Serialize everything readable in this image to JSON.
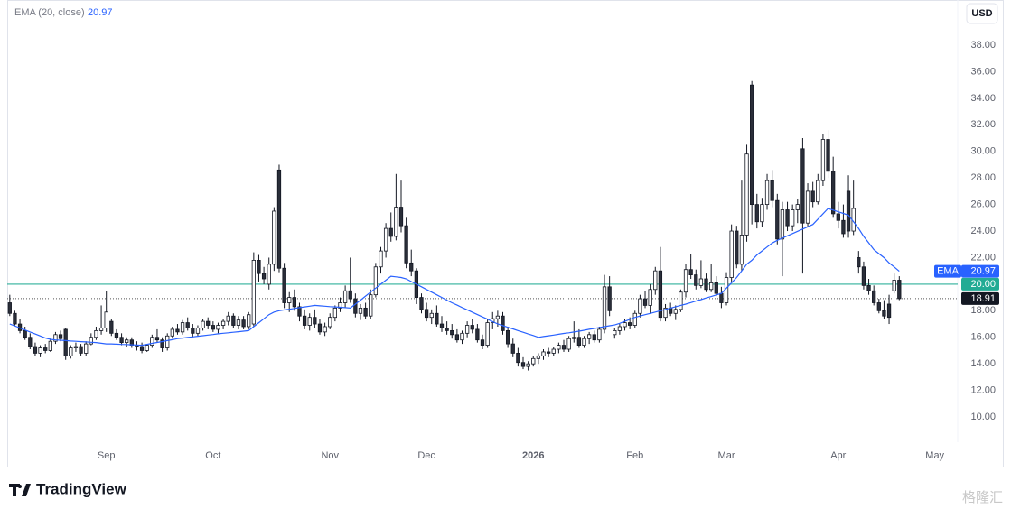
{
  "chart_data": {
    "type": "candlestick",
    "currency": "USD",
    "branding": "TradingView",
    "watermark": "格隆汇",
    "up_color": "#ffffff",
    "down_color": "#2a2e39",
    "candle_border": "#131722",
    "xlim": [
      -0.5,
      186.5
    ],
    "xticks": [
      {
        "value": 19,
        "label": "Sep"
      },
      {
        "value": 40,
        "label": "Oct"
      },
      {
        "value": 63,
        "label": "Nov"
      },
      {
        "value": 82,
        "label": "Dec"
      },
      {
        "value": 103,
        "label": "2026"
      },
      {
        "value": 123,
        "label": "Feb"
      },
      {
        "value": 141,
        "label": "Mar"
      },
      {
        "value": 163,
        "label": "Apr"
      },
      {
        "value": 182,
        "label": "May"
      }
    ],
    "ylim": [
      8.1,
      41.4
    ],
    "yticks": [
      {
        "value": 10,
        "label": "10.00"
      },
      {
        "value": 12,
        "label": "12.00"
      },
      {
        "value": 14,
        "label": "14.00"
      },
      {
        "value": 16,
        "label": "16.00"
      },
      {
        "value": 18,
        "label": "18.00"
      },
      {
        "value": 20,
        "label": "20.00"
      },
      {
        "value": 22,
        "label": "22.00"
      },
      {
        "value": 24,
        "label": "24.00"
      },
      {
        "value": 26,
        "label": "26.00"
      },
      {
        "value": 28,
        "label": "28.00"
      },
      {
        "value": 30,
        "label": "30.00"
      },
      {
        "value": 32,
        "label": "32.00"
      },
      {
        "value": 34,
        "label": "34.00"
      },
      {
        "value": 36,
        "label": "36.00"
      },
      {
        "value": 38,
        "label": "38.00"
      }
    ],
    "horizontal_line": {
      "value": 20,
      "label": "20.00",
      "color": "#22ab94"
    },
    "indicator": {
      "name": "EMA (20, close)",
      "tag": "EMA",
      "color": "#2962ff",
      "values": [
        17.0,
        16.85,
        16.7,
        16.55,
        16.4,
        16.25,
        16.1,
        15.95,
        15.85,
        15.8,
        15.78,
        15.75,
        15.72,
        15.7,
        15.67,
        15.65,
        15.62,
        15.6,
        15.55,
        15.5,
        15.5,
        15.48,
        15.46,
        15.45,
        15.43,
        15.42,
        15.4,
        15.47,
        15.54,
        15.61,
        15.68,
        15.75,
        15.82,
        15.9,
        15.94,
        15.99,
        16.03,
        16.08,
        16.12,
        16.17,
        16.21,
        16.26,
        16.3,
        16.34,
        16.38,
        16.42,
        16.46,
        16.5,
        16.8,
        17.1,
        17.4,
        17.7,
        17.9,
        18.0,
        18.06,
        18.11,
        18.17,
        18.23,
        18.29,
        18.34,
        18.4,
        18.37,
        18.34,
        18.31,
        18.29,
        18.26,
        18.23,
        18.2,
        18.5,
        18.8,
        19.1,
        19.4,
        19.7,
        20.0,
        20.3,
        20.6,
        20.55,
        20.5,
        20.4,
        20.2,
        20.0,
        19.8,
        19.6,
        19.4,
        19.2,
        19.0,
        18.8,
        18.6,
        18.42,
        18.24,
        18.07,
        17.89,
        17.71,
        17.53,
        17.36,
        17.18,
        17.0,
        16.88,
        16.75,
        16.63,
        16.5,
        16.38,
        16.25,
        16.13,
        16.0,
        16.06,
        16.11,
        16.17,
        16.23,
        16.29,
        16.34,
        16.4,
        16.46,
        16.53,
        16.6,
        16.66,
        16.73,
        16.8,
        16.87,
        16.93,
        17.05,
        17.2,
        17.35,
        17.5,
        17.6,
        17.7,
        17.8,
        17.9,
        18.0,
        18.1,
        18.2,
        18.3,
        18.4,
        18.5,
        18.61,
        18.73,
        18.84,
        18.96,
        19.07,
        19.19,
        19.3,
        19.7,
        20.1,
        20.5,
        21.0,
        21.5,
        21.8,
        22.2,
        22.5,
        22.8,
        23.1,
        23.3,
        23.47,
        23.64,
        23.81,
        23.98,
        24.15,
        24.32,
        24.5,
        24.9,
        25.3,
        25.7,
        25.58,
        25.45,
        25.33,
        25.2,
        24.7,
        24.2,
        23.6,
        23.1,
        22.6,
        22.3,
        22.0,
        21.6,
        21.3,
        20.97
      ]
    },
    "candles": [
      [
        18.6,
        19.2,
        17.6,
        17.8
      ],
      [
        17.8,
        18.0,
        16.9,
        17.0
      ],
      [
        17.0,
        17.4,
        16.3,
        16.5
      ],
      [
        16.5,
        16.8,
        15.8,
        16.0
      ],
      [
        16.0,
        16.3,
        15.1,
        15.3
      ],
      [
        15.3,
        15.6,
        14.6,
        14.8
      ],
      [
        14.8,
        15.4,
        14.5,
        15.2
      ],
      [
        15.2,
        15.5,
        14.8,
        15.0
      ],
      [
        15.0,
        15.9,
        14.9,
        15.7
      ],
      [
        15.7,
        16.4,
        15.5,
        16.2
      ],
      [
        16.2,
        16.5,
        15.7,
        15.9
      ],
      [
        16.6,
        16.7,
        14.3,
        14.6
      ],
      [
        14.6,
        15.4,
        14.4,
        15.2
      ],
      [
        15.2,
        15.6,
        14.9,
        15.3
      ],
      [
        15.3,
        15.5,
        14.6,
        14.8
      ],
      [
        14.8,
        15.7,
        14.6,
        15.5
      ],
      [
        15.5,
        16.3,
        15.4,
        16.0
      ],
      [
        16.0,
        16.8,
        15.8,
        16.5
      ],
      [
        16.5,
        18.4,
        16.2,
        16.7
      ],
      [
        16.7,
        19.5,
        16.4,
        17.9
      ],
      [
        17.2,
        17.4,
        16.1,
        16.3
      ],
      [
        16.3,
        16.6,
        15.8,
        16.0
      ],
      [
        16.0,
        16.3,
        15.4,
        15.6
      ],
      [
        15.6,
        16.0,
        15.3,
        15.8
      ],
      [
        15.8,
        16.0,
        15.2,
        15.4
      ],
      [
        15.4,
        15.7,
        15.0,
        15.3
      ],
      [
        15.3,
        15.6,
        14.8,
        15.0
      ],
      [
        15.0,
        15.5,
        14.9,
        15.4
      ],
      [
        15.4,
        16.2,
        15.2,
        16.0
      ],
      [
        16.0,
        16.6,
        15.6,
        15.8
      ],
      [
        15.8,
        16.0,
        14.9,
        15.2
      ],
      [
        15.2,
        16.3,
        15.0,
        16.1
      ],
      [
        16.1,
        16.8,
        15.9,
        16.6
      ],
      [
        16.6,
        17.0,
        16.2,
        16.4
      ],
      [
        16.4,
        17.3,
        16.2,
        17.1
      ],
      [
        17.1,
        17.5,
        16.5,
        16.7
      ],
      [
        16.7,
        17.0,
        16.0,
        16.3
      ],
      [
        16.3,
        16.9,
        16.1,
        16.7
      ],
      [
        16.7,
        17.4,
        16.5,
        17.2
      ],
      [
        17.2,
        17.5,
        16.6,
        16.9
      ],
      [
        16.9,
        17.2,
        16.4,
        16.6
      ],
      [
        16.6,
        17.1,
        16.3,
        16.9
      ],
      [
        16.9,
        17.4,
        16.6,
        17.2
      ],
      [
        17.2,
        17.9,
        16.9,
        17.6
      ],
      [
        17.6,
        17.8,
        16.7,
        16.9
      ],
      [
        16.9,
        17.6,
        16.6,
        17.3
      ],
      [
        17.3,
        17.6,
        16.6,
        16.8
      ],
      [
        16.8,
        17.9,
        16.6,
        17.7
      ],
      [
        17.0,
        22.4,
        16.8,
        21.8
      ],
      [
        21.8,
        22.2,
        20.2,
        20.8
      ],
      [
        20.8,
        21.3,
        20.0,
        20.4
      ],
      [
        20.0,
        22.0,
        19.6,
        21.5
      ],
      [
        21.5,
        25.8,
        21.0,
        25.5
      ],
      [
        28.6,
        29.0,
        20.9,
        21.2
      ],
      [
        21.2,
        21.6,
        18.2,
        18.6
      ],
      [
        18.6,
        19.4,
        17.9,
        19.0
      ],
      [
        19.0,
        19.6,
        18.0,
        18.3
      ],
      [
        18.3,
        18.6,
        17.2,
        17.6
      ],
      [
        17.6,
        18.1,
        16.6,
        16.9
      ],
      [
        16.9,
        17.8,
        16.5,
        17.5
      ],
      [
        17.5,
        18.1,
        16.7,
        17.0
      ],
      [
        17.0,
        17.4,
        16.2,
        16.4
      ],
      [
        16.4,
        17.1,
        16.1,
        16.8
      ],
      [
        16.8,
        17.8,
        16.6,
        17.5
      ],
      [
        17.5,
        18.4,
        17.2,
        18.2
      ],
      [
        18.2,
        19.0,
        17.9,
        18.6
      ],
      [
        18.6,
        19.9,
        18.2,
        19.5
      ],
      [
        19.5,
        22.0,
        18.6,
        18.9
      ],
      [
        18.9,
        19.3,
        17.5,
        17.8
      ],
      [
        17.8,
        18.5,
        17.3,
        18.2
      ],
      [
        18.2,
        18.6,
        17.4,
        17.6
      ],
      [
        17.6,
        19.6,
        17.4,
        19.2
      ],
      [
        19.2,
        21.6,
        19.0,
        21.3
      ],
      [
        21.3,
        22.8,
        20.8,
        22.5
      ],
      [
        22.5,
        24.6,
        22.0,
        24.2
      ],
      [
        24.2,
        25.4,
        23.2,
        23.6
      ],
      [
        23.6,
        28.3,
        23.3,
        25.8
      ],
      [
        25.8,
        27.8,
        23.9,
        24.4
      ],
      [
        24.4,
        25.0,
        21.2,
        21.6
      ],
      [
        21.6,
        22.6,
        20.6,
        21.0
      ],
      [
        21.0,
        21.2,
        18.5,
        19.0
      ],
      [
        19.0,
        19.3,
        17.8,
        18.1
      ],
      [
        18.1,
        18.6,
        17.2,
        17.5
      ],
      [
        17.5,
        18.1,
        17.0,
        17.8
      ],
      [
        17.8,
        18.4,
        16.8,
        17.0
      ],
      [
        17.0,
        17.6,
        16.4,
        16.7
      ],
      [
        16.7,
        17.2,
        16.2,
        16.5
      ],
      [
        16.5,
        17.0,
        15.9,
        16.2
      ],
      [
        16.2,
        16.6,
        15.6,
        15.8
      ],
      [
        15.8,
        16.5,
        15.5,
        16.3
      ],
      [
        16.3,
        17.2,
        16.0,
        16.9
      ],
      [
        16.9,
        17.4,
        16.3,
        16.6
      ],
      [
        16.6,
        17.0,
        15.6,
        15.8
      ],
      [
        15.8,
        16.2,
        15.1,
        15.4
      ],
      [
        15.4,
        17.4,
        15.2,
        17.1
      ],
      [
        17.1,
        17.9,
        16.6,
        17.4
      ],
      [
        17.4,
        18.0,
        16.8,
        17.6
      ],
      [
        17.6,
        17.9,
        16.2,
        16.5
      ],
      [
        16.5,
        16.8,
        15.2,
        15.5
      ],
      [
        15.5,
        15.9,
        14.5,
        14.8
      ],
      [
        14.8,
        15.2,
        13.8,
        14.1
      ],
      [
        14.1,
        14.5,
        13.6,
        13.8
      ],
      [
        13.8,
        14.2,
        13.5,
        14.0
      ],
      [
        14.0,
        14.6,
        13.8,
        14.4
      ],
      [
        14.4,
        14.8,
        14.0,
        14.6
      ],
      [
        14.6,
        15.1,
        14.3,
        14.9
      ],
      [
        14.9,
        15.2,
        14.5,
        14.8
      ],
      [
        14.8,
        15.3,
        14.6,
        15.1
      ],
      [
        15.1,
        15.6,
        14.8,
        15.4
      ],
      [
        15.4,
        15.8,
        14.9,
        15.1
      ],
      [
        15.1,
        16.1,
        14.9,
        15.9
      ],
      [
        15.9,
        17.2,
        15.6,
        16.0
      ],
      [
        16.0,
        16.6,
        15.2,
        15.4
      ],
      [
        15.4,
        16.1,
        15.2,
        15.9
      ],
      [
        15.9,
        16.4,
        15.5,
        16.2
      ],
      [
        16.2,
        16.5,
        15.6,
        15.8
      ],
      [
        15.8,
        16.8,
        15.6,
        16.6
      ],
      [
        16.6,
        20.7,
        16.3,
        19.8
      ],
      [
        19.8,
        20.6,
        17.6,
        18.0
      ],
      [
        16.2,
        16.7,
        15.9,
        16.5
      ],
      [
        16.5,
        17.0,
        16.2,
        16.8
      ],
      [
        16.8,
        17.4,
        16.5,
        17.1
      ],
      [
        17.1,
        17.5,
        16.6,
        16.9
      ],
      [
        16.9,
        18.0,
        16.7,
        17.8
      ],
      [
        17.8,
        19.2,
        17.5,
        18.9
      ],
      [
        18.9,
        19.5,
        18.2,
        18.4
      ],
      [
        18.4,
        20.0,
        17.8,
        19.6
      ],
      [
        19.6,
        21.3,
        19.2,
        21.0
      ],
      [
        21.0,
        22.8,
        17.2,
        17.5
      ],
      [
        17.5,
        18.5,
        17.2,
        18.2
      ],
      [
        18.2,
        18.6,
        17.6,
        17.8
      ],
      [
        17.8,
        18.4,
        17.3,
        18.1
      ],
      [
        18.1,
        19.6,
        17.9,
        19.4
      ],
      [
        19.4,
        21.5,
        19.0,
        21.1
      ],
      [
        21.1,
        22.3,
        20.4,
        20.7
      ],
      [
        20.7,
        21.1,
        19.6,
        19.9
      ],
      [
        19.9,
        21.8,
        19.7,
        20.4
      ],
      [
        20.4,
        20.8,
        19.4,
        19.6
      ],
      [
        19.6,
        21.5,
        19.4,
        20.1
      ],
      [
        20.1,
        20.6,
        19.1,
        19.3
      ],
      [
        19.3,
        19.8,
        18.2,
        18.6
      ],
      [
        18.6,
        20.9,
        18.4,
        20.5
      ],
      [
        20.5,
        24.5,
        20.2,
        24.0
      ],
      [
        24.0,
        24.4,
        21.2,
        21.5
      ],
      [
        21.5,
        27.8,
        21.0,
        23.7
      ],
      [
        23.7,
        30.5,
        23.2,
        29.8
      ],
      [
        35.0,
        35.3,
        24.5,
        26.0
      ],
      [
        26.0,
        26.8,
        24.2,
        24.7
      ],
      [
        24.7,
        26.5,
        24.3,
        26.0
      ],
      [
        26.0,
        28.3,
        25.6,
        27.8
      ],
      [
        27.8,
        28.6,
        25.8,
        26.3
      ],
      [
        26.3,
        26.8,
        23.0,
        23.4
      ],
      [
        23.4,
        26.2,
        20.6,
        25.6
      ],
      [
        25.6,
        26.2,
        24.0,
        24.4
      ],
      [
        24.4,
        26.0,
        24.0,
        25.6
      ],
      [
        25.6,
        26.4,
        24.6,
        26.0
      ],
      [
        30.2,
        31.0,
        20.8,
        24.6
      ],
      [
        24.6,
        27.6,
        24.3,
        27.0
      ],
      [
        27.0,
        27.7,
        25.8,
        26.2
      ],
      [
        26.2,
        28.3,
        26.0,
        27.8
      ],
      [
        27.8,
        31.3,
        27.4,
        30.9
      ],
      [
        30.9,
        31.6,
        28.0,
        28.5
      ],
      [
        28.5,
        29.6,
        25.0,
        25.3
      ],
      [
        25.3,
        26.2,
        24.2,
        24.8
      ],
      [
        24.8,
        26.0,
        23.5,
        23.8
      ],
      [
        27.0,
        28.2,
        23.5,
        24.0
      ],
      [
        24.0,
        27.8,
        23.7,
        25.7
      ],
      [
        22.0,
        22.5,
        20.8,
        21.3
      ],
      [
        21.3,
        21.7,
        19.6,
        19.9
      ],
      [
        19.9,
        20.4,
        19.2,
        19.5
      ],
      [
        19.5,
        19.9,
        18.4,
        18.6
      ],
      [
        18.6,
        18.9,
        17.8,
        18.0
      ],
      [
        18.0,
        18.8,
        17.4,
        17.6
      ],
      [
        18.5,
        19.2,
        17.0,
        17.5
      ],
      [
        19.5,
        20.8,
        19.3,
        20.3
      ],
      [
        20.3,
        20.6,
        18.8,
        18.91
      ]
    ]
  }
}
